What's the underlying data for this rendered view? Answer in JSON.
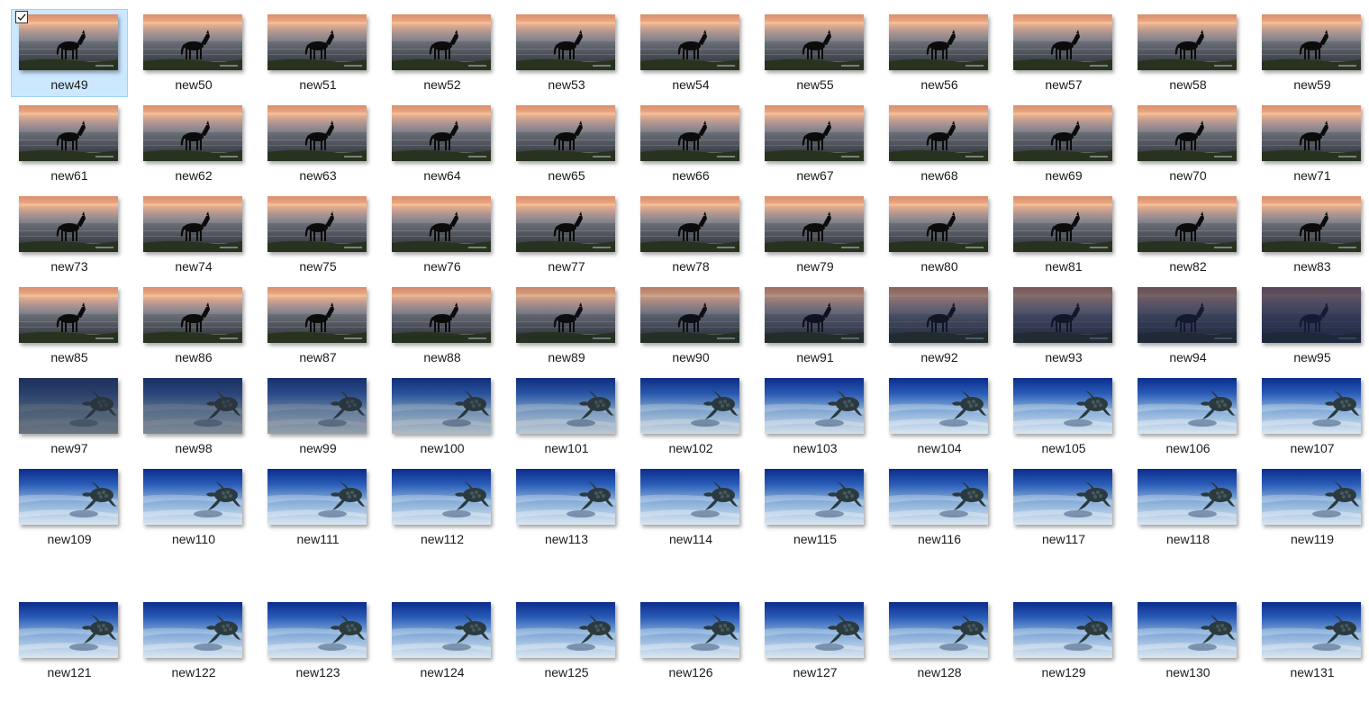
{
  "files": [
    {
      "name": "new49",
      "scene": "horse",
      "fade": 0,
      "selected": true
    },
    {
      "name": "new50",
      "scene": "horse",
      "fade": 0
    },
    {
      "name": "new51",
      "scene": "horse",
      "fade": 0
    },
    {
      "name": "new52",
      "scene": "horse",
      "fade": 0
    },
    {
      "name": "new53",
      "scene": "horse",
      "fade": 0
    },
    {
      "name": "new54",
      "scene": "horse",
      "fade": 0
    },
    {
      "name": "new55",
      "scene": "horse",
      "fade": 0
    },
    {
      "name": "new56",
      "scene": "horse",
      "fade": 0
    },
    {
      "name": "new57",
      "scene": "horse",
      "fade": 0
    },
    {
      "name": "new58",
      "scene": "horse",
      "fade": 0
    },
    {
      "name": "new59",
      "scene": "horse",
      "fade": 0
    },
    {
      "name": "new61",
      "scene": "horse",
      "fade": 0
    },
    {
      "name": "new62",
      "scene": "horse",
      "fade": 0
    },
    {
      "name": "new63",
      "scene": "horse",
      "fade": 0
    },
    {
      "name": "new64",
      "scene": "horse",
      "fade": 0
    },
    {
      "name": "new65",
      "scene": "horse",
      "fade": 0
    },
    {
      "name": "new66",
      "scene": "horse",
      "fade": 0
    },
    {
      "name": "new67",
      "scene": "horse",
      "fade": 0
    },
    {
      "name": "new68",
      "scene": "horse",
      "fade": 0
    },
    {
      "name": "new69",
      "scene": "horse",
      "fade": 0
    },
    {
      "name": "new70",
      "scene": "horse",
      "fade": 0
    },
    {
      "name": "new71",
      "scene": "horse",
      "fade": 0
    },
    {
      "name": "new73",
      "scene": "horse",
      "fade": 0
    },
    {
      "name": "new74",
      "scene": "horse",
      "fade": 0
    },
    {
      "name": "new75",
      "scene": "horse",
      "fade": 0
    },
    {
      "name": "new76",
      "scene": "horse",
      "fade": 0
    },
    {
      "name": "new77",
      "scene": "horse",
      "fade": 0
    },
    {
      "name": "new78",
      "scene": "horse",
      "fade": 0
    },
    {
      "name": "new79",
      "scene": "horse",
      "fade": 0
    },
    {
      "name": "new80",
      "scene": "horse",
      "fade": 0
    },
    {
      "name": "new81",
      "scene": "horse",
      "fade": 0
    },
    {
      "name": "new82",
      "scene": "horse",
      "fade": 0
    },
    {
      "name": "new83",
      "scene": "horse",
      "fade": 0
    },
    {
      "name": "new85",
      "scene": "horse",
      "fade": 0
    },
    {
      "name": "new86",
      "scene": "horse",
      "fade": 0
    },
    {
      "name": "new87",
      "scene": "horse",
      "fade": 0
    },
    {
      "name": "new88",
      "scene": "horse",
      "fade": 0.05
    },
    {
      "name": "new89",
      "scene": "horse",
      "fade": 0.1
    },
    {
      "name": "new90",
      "scene": "horse",
      "fade": 0.2
    },
    {
      "name": "new91",
      "scene": "horse",
      "fade": 0.35
    },
    {
      "name": "new92",
      "scene": "horse",
      "fade": 0.5
    },
    {
      "name": "new93",
      "scene": "horse",
      "fade": 0.6
    },
    {
      "name": "new94",
      "scene": "horse",
      "fade": 0.7
    },
    {
      "name": "new95",
      "scene": "horse",
      "fade": 0.8
    },
    {
      "name": "new97",
      "scene": "turtle",
      "fade": 0.8
    },
    {
      "name": "new98",
      "scene": "turtle",
      "fade": 0.65
    },
    {
      "name": "new99",
      "scene": "turtle",
      "fade": 0.5
    },
    {
      "name": "new100",
      "scene": "turtle",
      "fade": 0.3
    },
    {
      "name": "new101",
      "scene": "turtle",
      "fade": 0.2
    },
    {
      "name": "new102",
      "scene": "turtle",
      "fade": 0.1
    },
    {
      "name": "new103",
      "scene": "turtle",
      "fade": 0.05
    },
    {
      "name": "new104",
      "scene": "turtle",
      "fade": 0
    },
    {
      "name": "new105",
      "scene": "turtle",
      "fade": 0
    },
    {
      "name": "new106",
      "scene": "turtle",
      "fade": 0
    },
    {
      "name": "new107",
      "scene": "turtle",
      "fade": 0
    },
    {
      "name": "new109",
      "scene": "turtle",
      "fade": 0
    },
    {
      "name": "new110",
      "scene": "turtle",
      "fade": 0
    },
    {
      "name": "new111",
      "scene": "turtle",
      "fade": 0
    },
    {
      "name": "new112",
      "scene": "turtle",
      "fade": 0
    },
    {
      "name": "new113",
      "scene": "turtle",
      "fade": 0
    },
    {
      "name": "new114",
      "scene": "turtle",
      "fade": 0
    },
    {
      "name": "new115",
      "scene": "turtle",
      "fade": 0
    },
    {
      "name": "new116",
      "scene": "turtle",
      "fade": 0
    },
    {
      "name": "new117",
      "scene": "turtle",
      "fade": 0
    },
    {
      "name": "new118",
      "scene": "turtle",
      "fade": 0
    },
    {
      "name": "new119",
      "scene": "turtle",
      "fade": 0
    },
    {
      "name": "new121",
      "scene": "turtle",
      "fade": 0
    },
    {
      "name": "new122",
      "scene": "turtle",
      "fade": 0
    },
    {
      "name": "new123",
      "scene": "turtle",
      "fade": 0
    },
    {
      "name": "new124",
      "scene": "turtle",
      "fade": 0
    },
    {
      "name": "new125",
      "scene": "turtle",
      "fade": 0
    },
    {
      "name": "new126",
      "scene": "turtle",
      "fade": 0
    },
    {
      "name": "new127",
      "scene": "turtle",
      "fade": 0
    },
    {
      "name": "new128",
      "scene": "turtle",
      "fade": 0
    },
    {
      "name": "new129",
      "scene": "turtle",
      "fade": 0
    },
    {
      "name": "new130",
      "scene": "turtle",
      "fade": 0
    },
    {
      "name": "new131",
      "scene": "turtle",
      "fade": 0
    }
  ],
  "colors": {
    "selection_bg": "#cce8ff",
    "selection_border": "#99d1ff",
    "horse_sky_top": "#e8a078",
    "horse_sea": "#4a5058",
    "horse_grass": "#2c3a22",
    "turtle_deep": "#0a2a8a",
    "turtle_sand": "#c8dcec"
  },
  "icons": {
    "thumbnail": "image-thumbnail-icon",
    "checkbox": "checkbox-checked-icon"
  }
}
